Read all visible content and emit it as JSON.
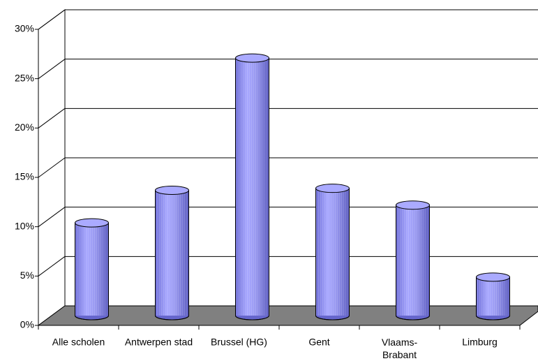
{
  "chart_data": {
    "type": "bar3d",
    "categories": [
      "Alle scholen",
      "Antwerpen stad",
      "Brussel (HG)",
      "Gent",
      "Vlaams-Brabant",
      "Limburg"
    ],
    "values": [
      9.4,
      12.7,
      26.1,
      12.9,
      11.2,
      3.9
    ],
    "color": "#9999ff",
    "ylim": [
      0,
      30
    ],
    "yticks": [
      {
        "value": 0,
        "label": "0%"
      },
      {
        "value": 5,
        "label": "5%"
      },
      {
        "value": 10,
        "label": "10%"
      },
      {
        "value": 15,
        "label": "15%"
      },
      {
        "value": 20,
        "label": "20%"
      },
      {
        "value": 25,
        "label": "25%"
      },
      {
        "value": 30,
        "label": "30%"
      }
    ],
    "grid": true
  }
}
